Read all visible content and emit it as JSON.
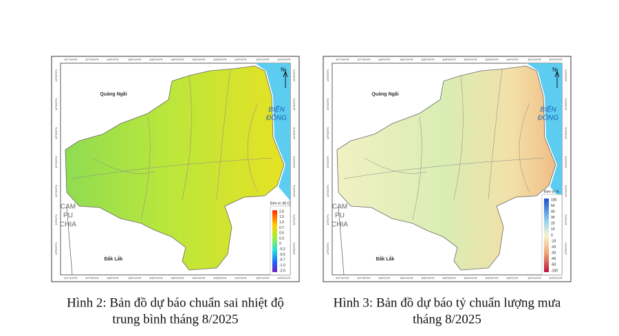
{
  "figures": [
    {
      "caption_lines": [
        "Hình 2: Bản đồ dự báo chuẩn sai nhiệt độ",
        "trung bình tháng 8/2025"
      ],
      "map": {
        "north": "N",
        "sea": [
          "BIỂN",
          "ĐÔNG"
        ],
        "cambodia": [
          "CAM",
          "PU",
          "CHIA"
        ],
        "province_north": "Quảng Ngãi",
        "province_south": "Đắk Lắk",
        "lon_labels": [
          "107°40'0\"E",
          "107°50'0\"E",
          "108°0'0\"E",
          "108°10'0\"E",
          "108°20'0\"E",
          "108°30'0\"E",
          "108°40'0\"E",
          "108°50'0\"E",
          "109°0'0\"E",
          "109°10'0\"E",
          "109°20'0\"E"
        ],
        "lat_labels": [
          "14°50'0\"N",
          "14°40'0\"N",
          "14°30'0\"N",
          "14°20'0\"N",
          "14°10'0\"N",
          "14°0'0\"N",
          "13°50'0\"N"
        ],
        "legend": {
          "title": "Đơn vị: độ C",
          "ticks": [
            "2.0",
            "1.5",
            "1.0",
            "0.7",
            "0.5",
            "0.3",
            "0",
            "-0.2",
            "-0.5",
            "-0.7",
            "-1.0",
            "-2.0"
          ]
        }
      }
    },
    {
      "caption_lines": [
        "Hình 3: Bản đồ dự báo tỷ chuẩn lượng mưa",
        "tháng 8/2025"
      ],
      "map": {
        "north": "N",
        "sea": [
          "BIỂN",
          "ĐÔNG"
        ],
        "cambodia": [
          "CAM",
          "PU",
          "CHIA"
        ],
        "province_north": "Quảng Ngãi",
        "province_south": "Đắk Lắk",
        "lon_labels": [
          "107°40'0\"E",
          "107°50'0\"E",
          "108°0'0\"E",
          "108°10'0\"E",
          "108°20'0\"E",
          "108°30'0\"E",
          "108°40'0\"E",
          "108°50'0\"E",
          "109°0'0\"E",
          "109°10'0\"E",
          "109°20'0\"E"
        ],
        "lat_labels": [
          "14°50'0\"N",
          "14°40'0\"N",
          "14°30'0\"N",
          "14°20'0\"N",
          "14°10'0\"N",
          "14°0'0\"N",
          "13°50'0\"N"
        ],
        "legend": {
          "title": "Đơn vị: %",
          "ticks": [
            "100",
            "50",
            "40",
            "30",
            "20",
            "10",
            "0",
            "-10",
            "-20",
            "-30",
            "-40",
            "-50",
            "-100"
          ]
        }
      }
    }
  ]
}
